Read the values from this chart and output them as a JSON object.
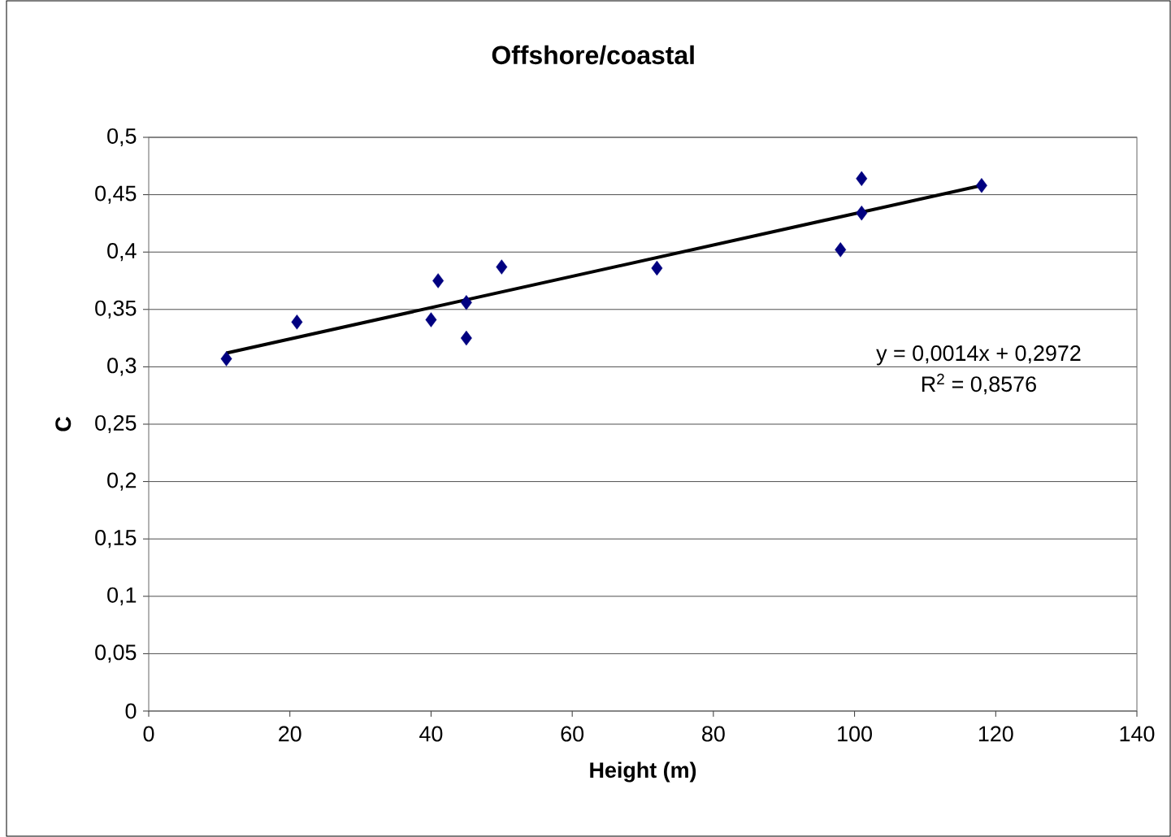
{
  "chart_data": {
    "type": "scatter",
    "title": "Offshore/coastal",
    "xlabel": "Height (m)",
    "ylabel": "C",
    "xlim": [
      0,
      140
    ],
    "xticks": [
      0,
      20,
      40,
      60,
      80,
      100,
      120,
      140
    ],
    "ylim": [
      0,
      0.5
    ],
    "yticks": [
      0,
      {
        "value": 0.05,
        "label": "0,05"
      },
      {
        "value": 0.1,
        "label": "0,1"
      },
      {
        "value": 0.15,
        "label": "0,15"
      },
      {
        "value": 0.2,
        "label": "0,2"
      },
      {
        "value": 0.25,
        "label": "0,25"
      },
      {
        "value": 0.3,
        "label": "0,3"
      },
      {
        "value": 0.35,
        "label": "0,35"
      },
      {
        "value": 0.4,
        "label": "0,4"
      },
      {
        "value": 0.45,
        "label": "0,45"
      },
      {
        "value": 0.5,
        "label": "0,5"
      }
    ],
    "grid": "y",
    "legend": false,
    "series": [
      {
        "color": "#000080",
        "marker": "diamond",
        "x": [
          11,
          21,
          40,
          41,
          45,
          45,
          50,
          72,
          98,
          101,
          101,
          118
        ],
        "values": [
          0.307,
          0.339,
          0.341,
          0.375,
          0.356,
          0.325,
          0.387,
          0.386,
          0.402,
          0.464,
          0.434,
          0.458
        ]
      },
      {
        "type": "line",
        "color": "#000000",
        "x": [
          11,
          118
        ],
        "values": [
          0.312,
          0.458
        ]
      }
    ],
    "annotations": [
      "y = 0,0014x + 0,2972",
      "R$^{2}$ = 0,8576"
    ]
  }
}
